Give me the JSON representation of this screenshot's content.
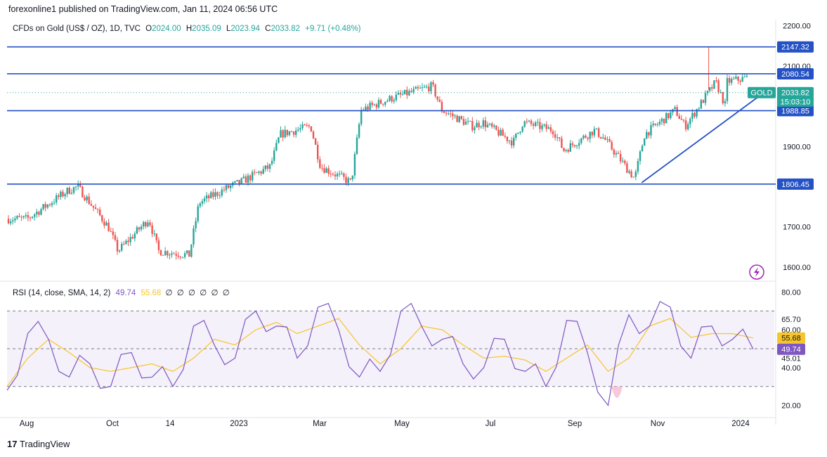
{
  "header": {
    "publisher": "forexonline1 published on TradingView.com, Jan 11, 2024 06:56 UTC"
  },
  "symbol": {
    "name": "CFDs on Gold (US$ / OZ), 1D, TVC",
    "open_label": "O",
    "open": "2024.00",
    "high_label": "H",
    "high": "2035.09",
    "low_label": "L",
    "low": "2023.94",
    "close_label": "C",
    "close": "2033.82",
    "change": "+9.71 (+0.48%)",
    "tag": "GOLD",
    "countdown": "15:03:10"
  },
  "rsi_header": {
    "title": "RSI (14, close, SMA, 14, 2)",
    "rsi_value": "49.74",
    "sma_value": "55.68",
    "empty_marks": [
      "∅",
      "∅",
      "∅",
      "∅",
      "∅",
      "∅"
    ]
  },
  "brand": {
    "logo": "17",
    "name": "TradingView"
  },
  "colors": {
    "up": "#26a69a",
    "down": "#ef5350",
    "hline": "#2451c4",
    "rsi": "#7e57c2",
    "rsi_ma": "#f7c52b",
    "band": "#ede7f6",
    "price_tag": "#26a69a"
  },
  "icons": {
    "lightning": "lightning-icon"
  },
  "chart_data": [
    {
      "type": "candlestick",
      "title": "CFDs on Gold (US$ / OZ), 1D, TVC",
      "ylim": [
        1565,
        2215
      ],
      "yticks": [
        "2200.00",
        "2100.00",
        "1900.00",
        "1700.00",
        "1600.00"
      ],
      "x_labels": [
        "Aug",
        "Oct",
        "14",
        "2023",
        "Mar",
        "May",
        "Jul",
        "Sep",
        "Nov",
        "2024"
      ],
      "horizontal_levels": [
        "2147.32",
        "2080.54",
        "1988.85",
        "1806.45"
      ],
      "current_price": "2033.82",
      "trendline": {
        "from": [
          "Oct 2023",
          1810
        ],
        "to": [
          "Jan 2024",
          2035
        ]
      },
      "close_path": [
        [
          "Jul 2022",
          1720
        ],
        [
          "Aug 2022",
          1790
        ],
        [
          "Aug 2022",
          1800
        ],
        [
          "Sep 2022",
          1700
        ],
        [
          "Sep 2022",
          1640
        ],
        [
          "Oct 2022",
          1720
        ],
        [
          "Oct 2022",
          1640
        ],
        [
          "Nov 2022",
          1630
        ],
        [
          "Nov 2022",
          1760
        ],
        [
          "Dec 2022",
          1800
        ],
        [
          "Dec 2022",
          1810
        ],
        [
          "Jan 2023",
          1850
        ],
        [
          "Jan 2023",
          1930
        ],
        [
          "Feb 2023",
          1950
        ],
        [
          "Feb 2023",
          1850
        ],
        [
          "Mar 2023",
          1810
        ],
        [
          "Mar 2023",
          1990
        ],
        [
          "Apr 2023",
          2020
        ],
        [
          "May 2023",
          2050
        ],
        [
          "May 2023",
          1990
        ],
        [
          "Jun 2023",
          1950
        ],
        [
          "Jun 2023",
          1960
        ],
        [
          "Jul 2023",
          1910
        ],
        [
          "Jul 2023",
          1960
        ],
        [
          "Aug 2023",
          1940
        ],
        [
          "Aug 2023",
          1890
        ],
        [
          "Sep 2023",
          1940
        ],
        [
          "Sep 2023",
          1920
        ],
        [
          "Oct 2023",
          1820
        ],
        [
          "Oct 2023",
          1930
        ],
        [
          "Nov 2023",
          1990
        ],
        [
          "Nov 2023",
          1950
        ],
        [
          "Dec 2023",
          2060
        ],
        [
          "Dec 2023",
          2000
        ],
        [
          "Dec 2023",
          2060
        ],
        [
          "Jan 2024",
          2075
        ],
        [
          "Jan 2024",
          2033.82
        ]
      ]
    },
    {
      "type": "line",
      "title": "RSI (14, close, SMA, 14, 2)",
      "ylim": [
        15,
        85
      ],
      "yticks": [
        "80.00",
        "65.70",
        "60.00",
        "45.01",
        "40.00",
        "20.00"
      ],
      "bands": [
        70,
        30
      ],
      "series": [
        {
          "name": "RSI",
          "values": [
            28,
            58,
            55,
            35,
            42,
            30,
            48,
            35,
            30,
            62,
            52,
            45,
            70,
            62,
            45,
            72,
            60,
            35,
            38,
            70,
            62,
            55,
            42,
            40,
            55,
            38,
            30,
            65,
            48,
            20,
            68,
            62,
            72,
            45,
            62,
            55,
            49.74
          ]
        },
        {
          "name": "RSI-based MA",
          "values": [
            30,
            45,
            55,
            48,
            40,
            38,
            40,
            42,
            38,
            45,
            55,
            52,
            60,
            64,
            58,
            62,
            66,
            52,
            42,
            50,
            62,
            60,
            52,
            45,
            46,
            44,
            38,
            45,
            52,
            38,
            45,
            62,
            66,
            56,
            58,
            58,
            55.68
          ]
        }
      ],
      "labels": {
        "rsi": "49.74",
        "ma": "55.68"
      }
    }
  ]
}
